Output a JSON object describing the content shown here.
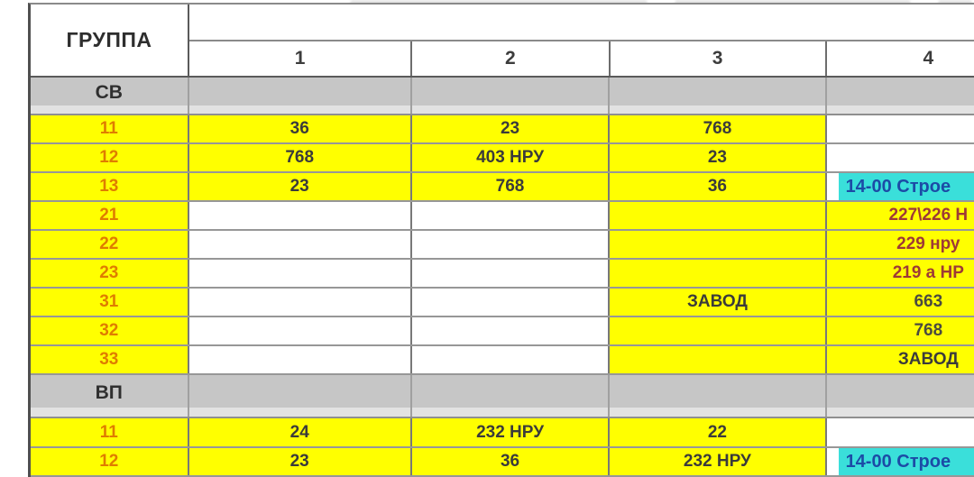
{
  "colors": {
    "cell_yellow": "#FFFF00",
    "band_gray": "#C6C6C6",
    "highlight_cyan": "#3ADFDA",
    "cyan_text_navy": "#1C4BA6",
    "group_number_orange": "#DF7D00",
    "value_dark": "#3B3B3B",
    "room_red": "#9E3A36"
  },
  "table": {
    "corner_header": "ГРУППА",
    "column_headers": [
      "1",
      "2",
      "3",
      "4"
    ],
    "sections": [
      {
        "label": "СВ",
        "rows": [
          {
            "group": "11",
            "cells": [
              "36",
              "23",
              "768",
              ""
            ]
          },
          {
            "group": "12",
            "cells": [
              "768",
              "403 НРУ",
              "23",
              ""
            ]
          },
          {
            "group": "13",
            "cells": [
              "23",
              "768",
              "36",
              "14-00 Строе"
            ]
          },
          {
            "group": "21",
            "cells": [
              "",
              "",
              "",
              "227\\226 Н"
            ]
          },
          {
            "group": "22",
            "cells": [
              "",
              "",
              "",
              "229 нру"
            ]
          },
          {
            "group": "23",
            "cells": [
              "",
              "",
              "",
              "219 а НР"
            ]
          },
          {
            "group": "31",
            "cells": [
              "",
              "",
              "ЗАВОД",
              "663"
            ]
          },
          {
            "group": "32",
            "cells": [
              "",
              "",
              "",
              "768"
            ]
          },
          {
            "group": "33",
            "cells": [
              "",
              "",
              "",
              "ЗАВОД"
            ]
          }
        ]
      },
      {
        "label": "ВП",
        "rows": [
          {
            "group": "11",
            "cells": [
              "24",
              "232 НРУ",
              "22",
              ""
            ]
          },
          {
            "group": "12",
            "cells": [
              "23",
              "36",
              "232 НРУ",
              "14-00 Строе"
            ]
          }
        ]
      }
    ]
  }
}
